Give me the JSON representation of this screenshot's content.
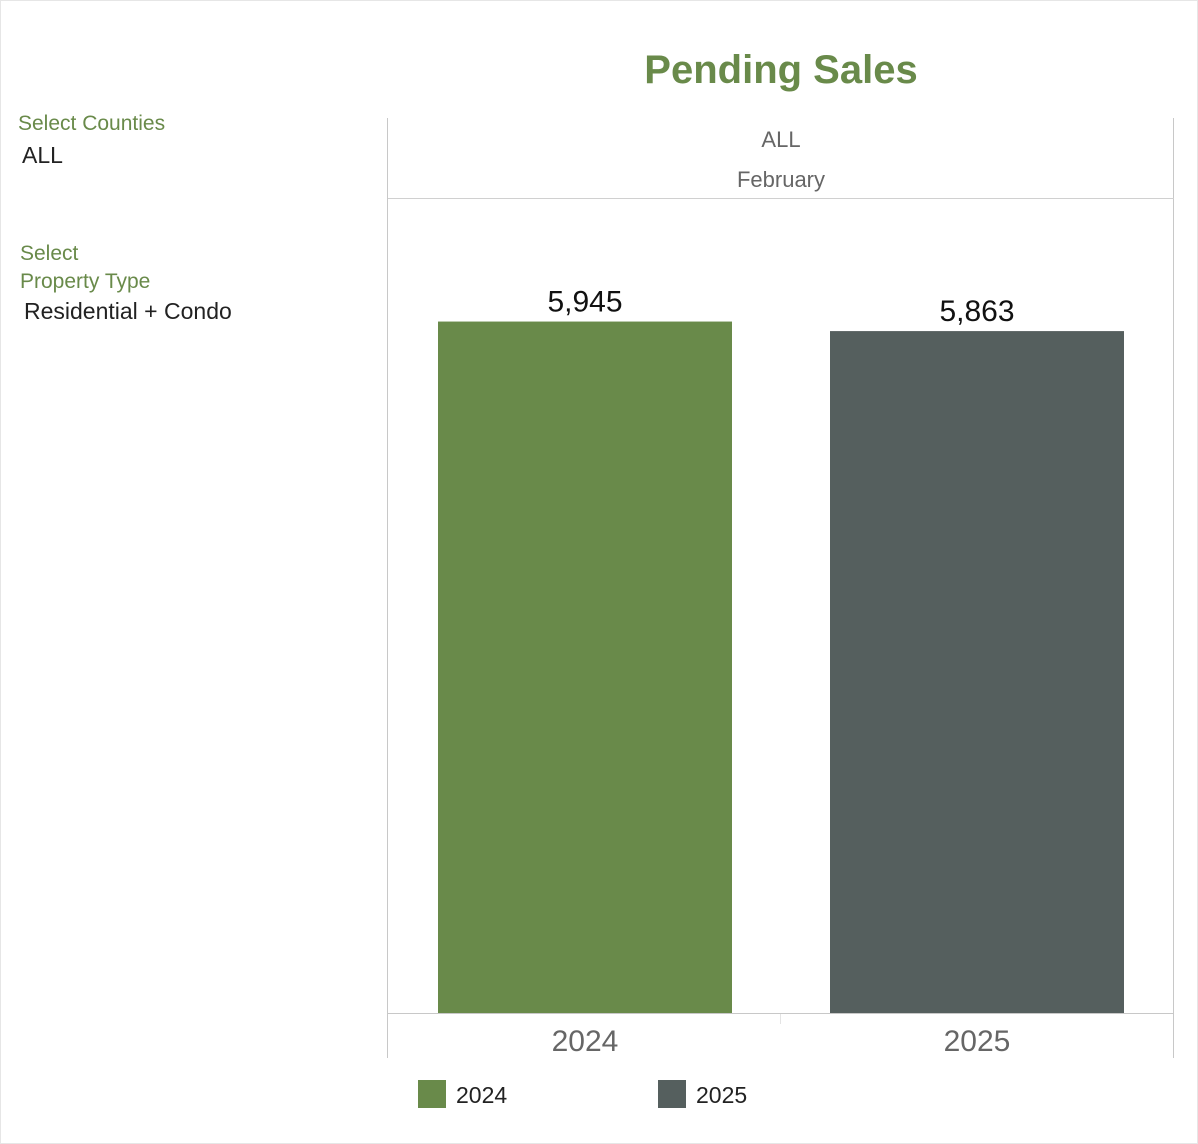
{
  "filters": {
    "counties": {
      "label": "Select Counties",
      "value": "ALL"
    },
    "property_type": {
      "label_line1": "Select",
      "label_line2": "Property Type",
      "value": "Residential + Condo"
    }
  },
  "header": {
    "region": "ALL",
    "month": "February"
  },
  "colors": {
    "accent": "#698a4a",
    "series_2024": "#698a4a",
    "series_2025": "#555f5e"
  },
  "chart_data": {
    "type": "bar",
    "title": "Pending Sales",
    "categories": [
      "2024",
      "2025"
    ],
    "values": [
      5945,
      5863
    ],
    "value_labels": [
      "5,945",
      "5,863"
    ],
    "colors": [
      "#698a4a",
      "#555f5e"
    ],
    "ylim": [
      0,
      6500
    ],
    "grid": false,
    "legend": {
      "position": "bottom-left",
      "entries": [
        "2024",
        "2025"
      ]
    },
    "xlabel": "",
    "ylabel": ""
  }
}
